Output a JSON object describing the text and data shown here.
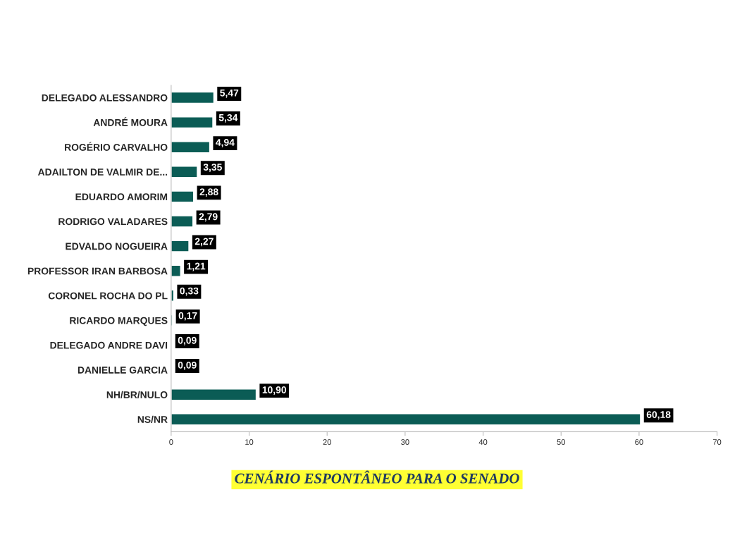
{
  "chart_data": {
    "type": "bar",
    "orientation": "horizontal",
    "title": "CENÁRIO ESPONTÂNEO PARA O SENADO",
    "categories": [
      "DELEGADO ALESSANDRO",
      "ANDRÉ MOURA",
      "ROGÉRIO CARVALHO",
      "ADAILTON DE VALMIR DE...",
      "EDUARDO AMORIM",
      "RODRIGO VALADARES",
      "EDVALDO NOGUEIRA",
      "PROFESSOR IRAN BARBOSA",
      "CORONEL ROCHA DO PL",
      "RICARDO MARQUES",
      "DELEGADO ANDRE DAVI",
      "DANIELLE GARCIA",
      "NH/BR/NULO",
      "NS/NR"
    ],
    "values": [
      5.47,
      5.34,
      4.94,
      3.35,
      2.88,
      2.79,
      2.27,
      1.21,
      0.33,
      0.17,
      0.09,
      0.09,
      10.9,
      60.18
    ],
    "value_labels": [
      "5,47",
      "5,34",
      "4,94",
      "3,35",
      "2,88",
      "2,79",
      "2,27",
      "1,21",
      "0,33",
      "0,17",
      "0,09",
      "0,09",
      "10,90",
      "60,18"
    ],
    "color": "#0b5c55",
    "xlim": [
      0,
      70
    ],
    "xticks": [
      0,
      10,
      20,
      30,
      40,
      50,
      60,
      70
    ],
    "grid": false,
    "legend": false
  }
}
